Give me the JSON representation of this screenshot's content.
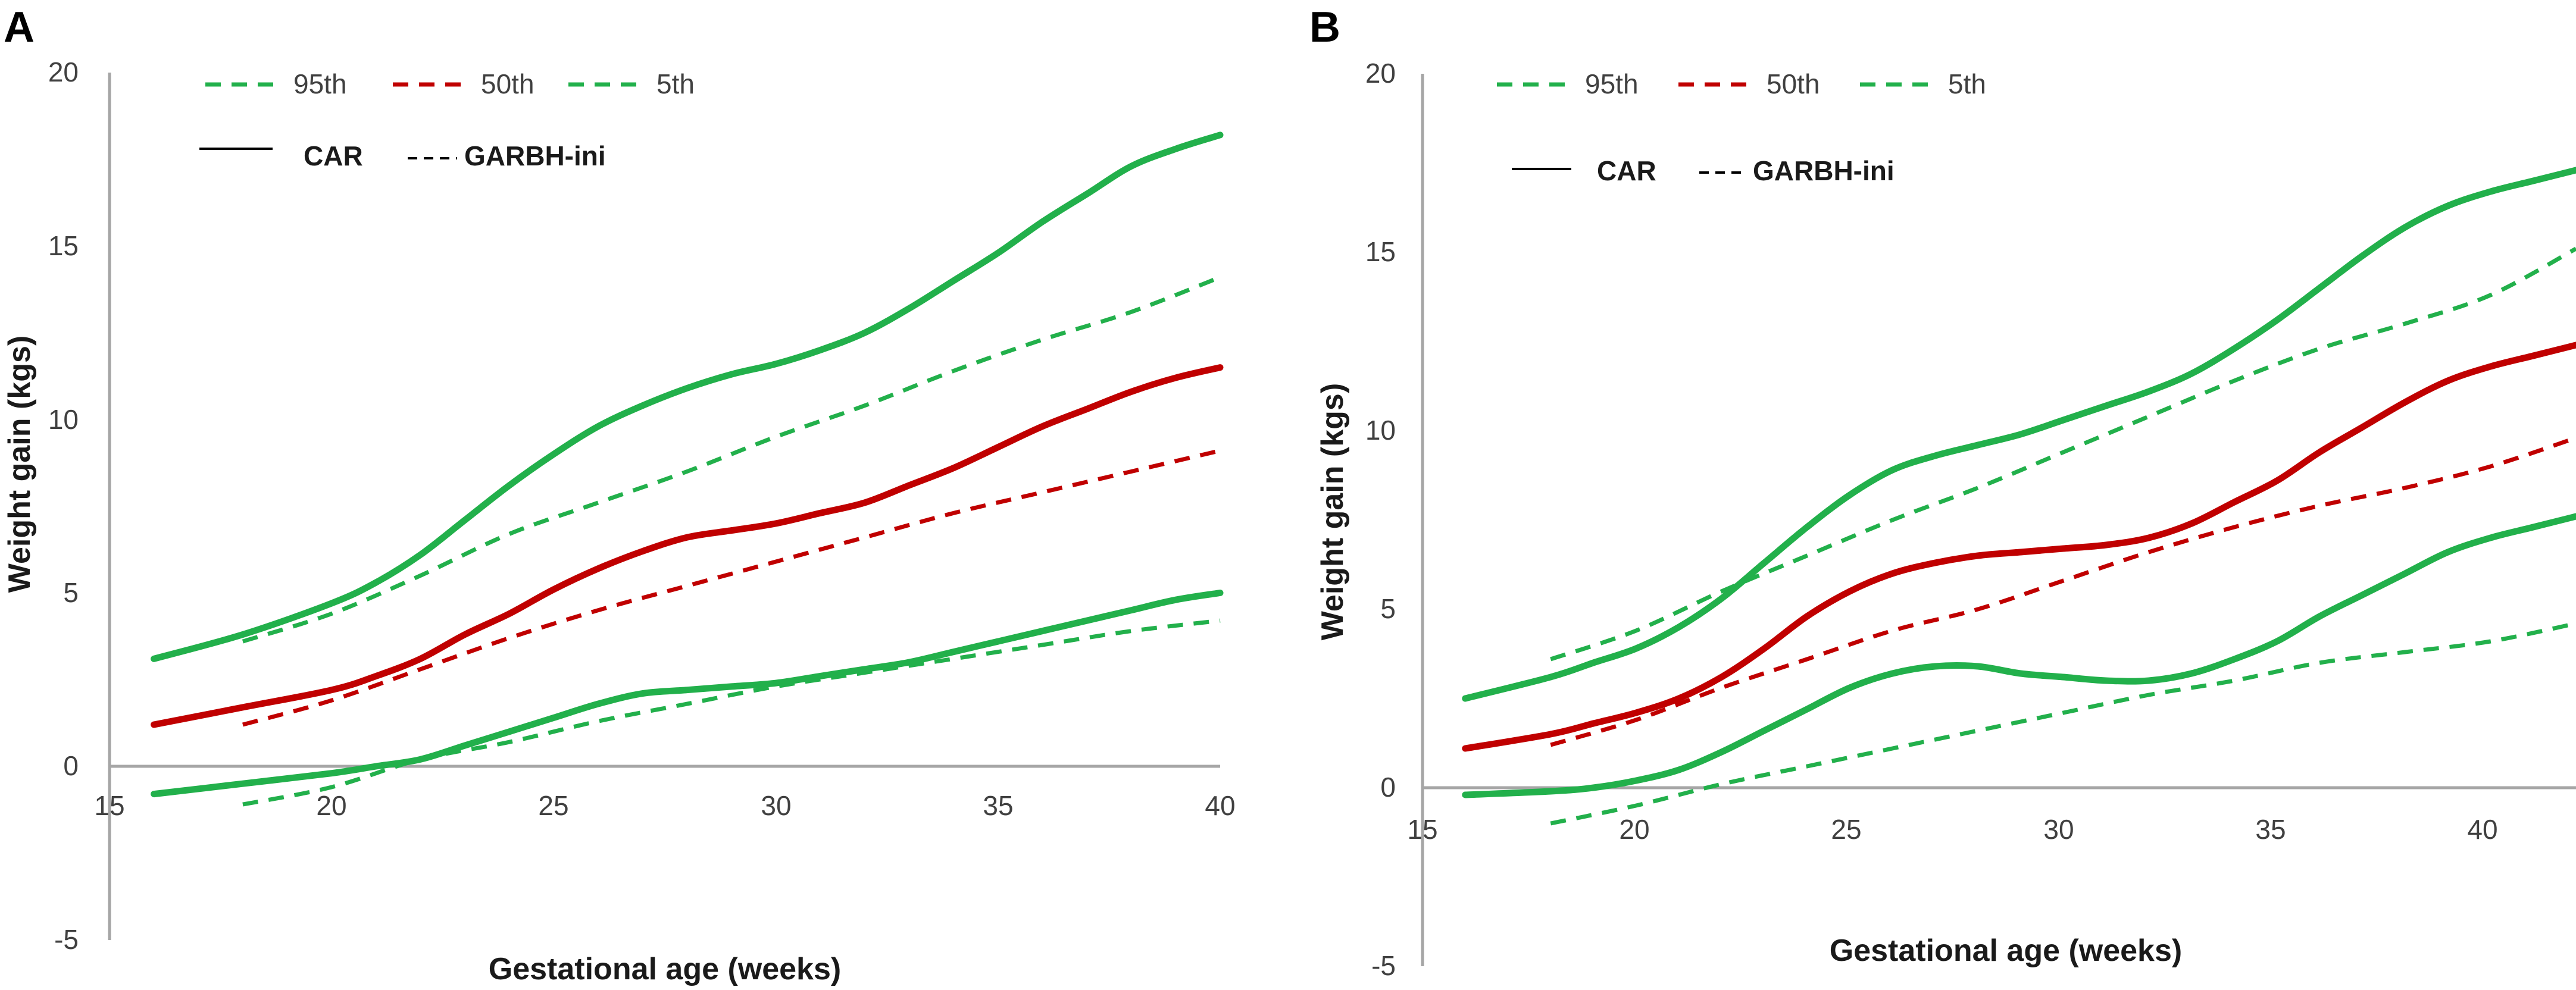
{
  "chart_data": [
    {
      "type": "line",
      "panel_label": "A",
      "xlabel": "Gestational age (weeks)",
      "ylabel": "Weight gain (kgs)",
      "xlim": [
        15,
        40
      ],
      "ylim": [
        -5,
        20
      ],
      "xticks": [
        "15",
        "20",
        "25",
        "30",
        "35",
        "40"
      ],
      "yticks": [
        "-5",
        "0",
        "5",
        "10",
        "15",
        "20"
      ],
      "legend_percentiles": [
        {
          "label": "95th",
          "color": "#22b04b"
        },
        {
          "label": "50th",
          "color": "#c00000"
        },
        {
          "label": "5th",
          "color": "#22b04b"
        }
      ],
      "legend_styles": [
        {
          "label": "CAR",
          "style": "solid"
        },
        {
          "label": "GARBH-ini",
          "style": "dashed"
        }
      ],
      "series": [
        {
          "name": "95th CAR",
          "percentile": "95th",
          "source": "CAR",
          "color": "#22b04b",
          "x": [
            16,
            18,
            20,
            21,
            22,
            23,
            24,
            25,
            26,
            27,
            28,
            29,
            30,
            31,
            32,
            33,
            34,
            35,
            36,
            37,
            38,
            39,
            40
          ],
          "values": [
            3.1,
            3.8,
            4.7,
            5.3,
            6.1,
            7.1,
            8.1,
            9.0,
            9.8,
            10.4,
            10.9,
            11.3,
            11.6,
            12.0,
            12.5,
            13.2,
            14.0,
            14.8,
            15.7,
            16.5,
            17.3,
            17.8,
            18.2
          ]
        },
        {
          "name": "50th CAR",
          "percentile": "50th",
          "source": "CAR",
          "color": "#c00000",
          "x": [
            16,
            18,
            20,
            21,
            22,
            23,
            24,
            25,
            26,
            27,
            28,
            29,
            30,
            31,
            32,
            33,
            34,
            35,
            36,
            37,
            38,
            39,
            40
          ],
          "values": [
            1.2,
            1.7,
            2.2,
            2.6,
            3.1,
            3.8,
            4.4,
            5.1,
            5.7,
            6.2,
            6.6,
            6.8,
            7.0,
            7.3,
            7.6,
            8.1,
            8.6,
            9.2,
            9.8,
            10.3,
            10.8,
            11.2,
            11.5
          ]
        },
        {
          "name": "5th CAR",
          "percentile": "5th",
          "source": "CAR",
          "color": "#22b04b",
          "x": [
            16,
            18,
            20,
            21,
            22,
            23,
            24,
            25,
            26,
            27,
            28,
            29,
            30,
            31,
            32,
            33,
            34,
            35,
            36,
            37,
            38,
            39,
            40
          ],
          "values": [
            -0.8,
            -0.5,
            -0.2,
            0.0,
            0.2,
            0.6,
            1.0,
            1.4,
            1.8,
            2.1,
            2.2,
            2.3,
            2.4,
            2.6,
            2.8,
            3.0,
            3.3,
            3.6,
            3.9,
            4.2,
            4.5,
            4.8,
            5.0
          ]
        },
        {
          "name": "95th GARBH-ini",
          "percentile": "95th",
          "source": "GARBH-ini",
          "color": "#22b04b",
          "x": [
            18,
            20,
            22,
            24,
            26,
            28,
            30,
            32,
            34,
            36,
            38,
            40
          ],
          "values": [
            3.6,
            4.4,
            5.5,
            6.7,
            7.6,
            8.5,
            9.5,
            10.4,
            11.4,
            12.3,
            13.1,
            14.1
          ]
        },
        {
          "name": "50th GARBH-ini",
          "percentile": "50th",
          "source": "GARBH-ini",
          "color": "#c00000",
          "x": [
            18,
            20,
            22,
            24,
            26,
            28,
            30,
            32,
            34,
            36,
            38,
            40
          ],
          "values": [
            1.2,
            1.9,
            2.8,
            3.7,
            4.5,
            5.2,
            5.9,
            6.6,
            7.3,
            7.9,
            8.5,
            9.1
          ]
        },
        {
          "name": "5th GARBH-ini",
          "percentile": "5th",
          "source": "GARBH-ini",
          "color": "#22b04b",
          "x": [
            18,
            20,
            22,
            24,
            26,
            28,
            30,
            32,
            34,
            36,
            38,
            40
          ],
          "values": [
            -1.1,
            -0.6,
            0.2,
            0.7,
            1.3,
            1.8,
            2.3,
            2.7,
            3.1,
            3.5,
            3.9,
            4.2
          ]
        }
      ]
    },
    {
      "type": "line",
      "panel_label": "B",
      "xlabel": "Gestational age (weeks)",
      "ylabel": "Weight gain (kgs)",
      "xlim": [
        15,
        42
      ],
      "ylim": [
        -5,
        20
      ],
      "xticks": [
        "15",
        "20",
        "25",
        "30",
        "35",
        "40"
      ],
      "yticks": [
        "-5",
        "0",
        "5",
        "10",
        "15",
        "20"
      ],
      "legend_percentiles": [
        {
          "label": "95th",
          "color": "#22b04b"
        },
        {
          "label": "50th",
          "color": "#c00000"
        },
        {
          "label": "5th",
          "color": "#22b04b"
        }
      ],
      "legend_styles": [
        {
          "label": "CAR",
          "style": "solid"
        },
        {
          "label": "GARBH-ini",
          "style": "dashed"
        }
      ],
      "series": [
        {
          "name": "95th CAR",
          "percentile": "95th",
          "source": "CAR",
          "color": "#22b04b",
          "x": [
            16,
            18,
            19,
            20,
            21,
            22,
            23,
            24,
            25,
            26,
            27,
            28,
            29,
            30,
            31,
            32,
            33,
            34,
            35,
            36,
            37,
            38,
            39,
            40,
            41,
            42
          ],
          "values": [
            2.5,
            3.1,
            3.5,
            3.9,
            4.5,
            5.3,
            6.3,
            7.3,
            8.2,
            8.9,
            9.3,
            9.6,
            9.9,
            10.3,
            10.7,
            11.1,
            11.6,
            12.3,
            13.1,
            14.0,
            14.9,
            15.7,
            16.3,
            16.7,
            17.0,
            17.3
          ]
        },
        {
          "name": "50th CAR",
          "percentile": "50th",
          "source": "CAR",
          "color": "#c00000",
          "x": [
            16,
            18,
            19,
            20,
            21,
            22,
            23,
            24,
            25,
            26,
            27,
            28,
            29,
            30,
            31,
            32,
            33,
            34,
            35,
            36,
            37,
            38,
            39,
            40,
            41,
            42
          ],
          "values": [
            1.1,
            1.5,
            1.8,
            2.1,
            2.5,
            3.1,
            3.9,
            4.8,
            5.5,
            6.0,
            6.3,
            6.5,
            6.6,
            6.7,
            6.8,
            7.0,
            7.4,
            8.0,
            8.6,
            9.4,
            10.1,
            10.8,
            11.4,
            11.8,
            12.1,
            12.4
          ]
        },
        {
          "name": "5th CAR",
          "percentile": "5th",
          "source": "CAR",
          "color": "#22b04b",
          "x": [
            16,
            18,
            19,
            20,
            21,
            22,
            23,
            24,
            25,
            26,
            27,
            28,
            29,
            30,
            31,
            32,
            33,
            34,
            35,
            36,
            37,
            38,
            39,
            40,
            41,
            42
          ],
          "values": [
            -0.2,
            -0.1,
            0.0,
            0.2,
            0.5,
            1.0,
            1.6,
            2.2,
            2.8,
            3.2,
            3.4,
            3.4,
            3.2,
            3.1,
            3.0,
            3.0,
            3.2,
            3.6,
            4.1,
            4.8,
            5.4,
            6.0,
            6.6,
            7.0,
            7.3,
            7.6
          ]
        },
        {
          "name": "95th GARBH-ini",
          "percentile": "95th",
          "source": "GARBH-ini",
          "color": "#22b04b",
          "x": [
            18,
            20,
            22,
            24,
            26,
            28,
            30,
            32,
            34,
            36,
            38,
            40,
            42
          ],
          "values": [
            3.6,
            4.4,
            5.5,
            6.5,
            7.5,
            8.4,
            9.4,
            10.4,
            11.4,
            12.3,
            13.0,
            13.8,
            15.1
          ]
        },
        {
          "name": "50th GARBH-ini",
          "percentile": "50th",
          "source": "GARBH-ini",
          "color": "#c00000",
          "x": [
            18,
            20,
            22,
            24,
            26,
            28,
            30,
            32,
            34,
            36,
            38,
            40,
            42
          ],
          "values": [
            1.2,
            1.9,
            2.8,
            3.6,
            4.4,
            5.0,
            5.8,
            6.6,
            7.3,
            7.9,
            8.4,
            9.0,
            9.8
          ]
        },
        {
          "name": "5th GARBH-ini",
          "percentile": "5th",
          "source": "GARBH-ini",
          "color": "#22b04b",
          "x": [
            18,
            20,
            22,
            24,
            26,
            28,
            30,
            32,
            34,
            36,
            38,
            40,
            42
          ],
          "values": [
            -1.0,
            -0.5,
            0.1,
            0.6,
            1.1,
            1.6,
            2.1,
            2.6,
            3.0,
            3.5,
            3.8,
            4.1,
            4.6
          ]
        }
      ]
    }
  ]
}
